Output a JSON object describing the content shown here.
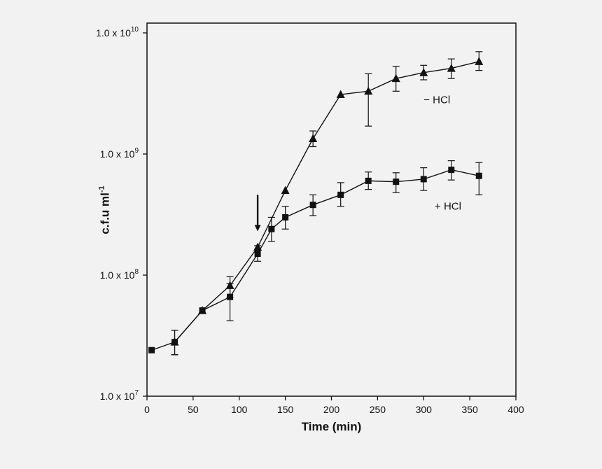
{
  "figure": {
    "background": "#f2f2f2",
    "ink": "#111111"
  },
  "chart_data": {
    "type": "line",
    "title": "",
    "xlabel": "Time (min)",
    "ylabel": "c.f.u ml⁻¹",
    "ylabel_base": "c.f.u ml",
    "ylabel_exp": "-1",
    "grid": false,
    "x_axis": {
      "min": 0,
      "max": 400,
      "ticks": [
        0,
        50,
        100,
        150,
        200,
        250,
        300,
        350,
        400
      ]
    },
    "y_axis": {
      "scale": "log10",
      "min_exp": 7,
      "max_exp": 10,
      "ticks": [
        {
          "base": "1.0 x 10",
          "exp": "7"
        },
        {
          "base": "1.0 x 10",
          "exp": "8"
        },
        {
          "base": "1.0 x 10",
          "exp": "9"
        },
        {
          "base": "1.0 x 10",
          "exp": "10"
        }
      ]
    },
    "legend": [
      {
        "text": "− HCl",
        "x": 300,
        "v": 2800000000.0
      },
      {
        "text": "+ HCl",
        "x": 312,
        "v": 370000000.0
      }
    ],
    "annotation_arrow": {
      "x": 120,
      "v_from": 460000000.0,
      "v_to": 230000000.0
    },
    "series": [
      {
        "name": "− HCl",
        "marker": "triangle",
        "points": [
          {
            "x": 30,
            "y": 28000000.0,
            "lo": 22000000.0,
            "hi": 35000000.0
          },
          {
            "x": 60,
            "y": 51000000.0
          },
          {
            "x": 90,
            "y": 82000000.0,
            "lo": 65000000.0,
            "hi": 97000000.0
          },
          {
            "x": 120,
            "y": 170000000.0
          },
          {
            "x": 150,
            "y": 500000000.0
          },
          {
            "x": 180,
            "y": 1340000000.0,
            "lo": 1150000000.0,
            "hi": 1550000000.0
          },
          {
            "x": 210,
            "y": 3100000000.0
          },
          {
            "x": 240,
            "y": 3300000000.0,
            "lo": 1700000000.0,
            "hi": 4600000000.0
          },
          {
            "x": 270,
            "y": 4200000000.0,
            "lo": 3300000000.0,
            "hi": 5300000000.0
          },
          {
            "x": 300,
            "y": 4700000000.0,
            "lo": 4100000000.0,
            "hi": 5400000000.0
          },
          {
            "x": 330,
            "y": 5100000000.0,
            "lo": 4200000000.0,
            "hi": 6100000000.0
          },
          {
            "x": 360,
            "y": 5800000000.0,
            "lo": 4900000000.0,
            "hi": 7000000000.0
          }
        ]
      },
      {
        "name": "+ HCl",
        "marker": "square",
        "points": [
          {
            "x": 5,
            "y": 24000000.0
          },
          {
            "x": 30,
            "y": 28000000.0,
            "lo": 22000000.0,
            "hi": 35000000.0
          },
          {
            "x": 60,
            "y": 51000000.0
          },
          {
            "x": 90,
            "y": 66000000.0,
            "lo": 42000000.0,
            "hi": 85000000.0
          },
          {
            "x": 120,
            "y": 150000000.0,
            "lo": 130000000.0,
            "hi": 175000000.0
          },
          {
            "x": 135,
            "y": 240000000.0,
            "lo": 190000000.0,
            "hi": 300000000.0
          },
          {
            "x": 150,
            "y": 300000000.0,
            "lo": 240000000.0,
            "hi": 370000000.0
          },
          {
            "x": 180,
            "y": 380000000.0,
            "lo": 310000000.0,
            "hi": 460000000.0
          },
          {
            "x": 210,
            "y": 460000000.0,
            "lo": 370000000.0,
            "hi": 580000000.0
          },
          {
            "x": 240,
            "y": 600000000.0,
            "lo": 510000000.0,
            "hi": 710000000.0
          },
          {
            "x": 270,
            "y": 590000000.0,
            "lo": 480000000.0,
            "hi": 700000000.0
          },
          {
            "x": 300,
            "y": 620000000.0,
            "lo": 500000000.0,
            "hi": 770000000.0
          },
          {
            "x": 330,
            "y": 740000000.0,
            "lo": 610000000.0,
            "hi": 880000000.0
          },
          {
            "x": 360,
            "y": 660000000.0,
            "lo": 460000000.0,
            "hi": 850000000.0
          }
        ]
      }
    ]
  }
}
